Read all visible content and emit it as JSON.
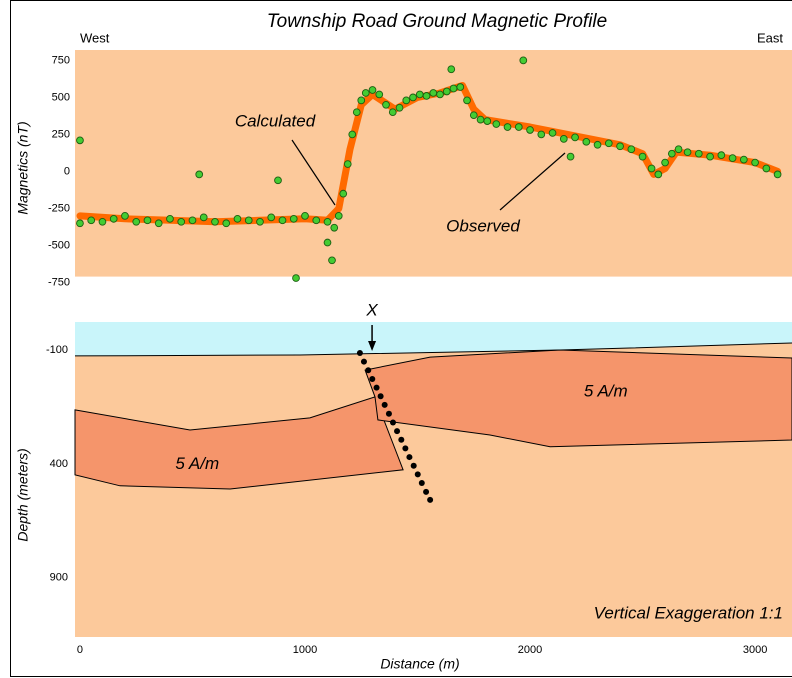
{
  "chart_data": [
    {
      "type": "scatter",
      "title": "Township Road Ground Magnetic Profile",
      "left_label": "West",
      "right_label": "East",
      "ylabel": "Magnetics (nT)",
      "ylim": [
        -710,
        820
      ],
      "yticks": [
        750,
        500,
        250,
        0,
        -250,
        -500,
        -750
      ],
      "background": "#fcc99b",
      "series": [
        {
          "name": "Calculated",
          "color": "#ff6a00",
          "x": [
            0,
            200,
            400,
            600,
            800,
            1000,
            1100,
            1150,
            1200,
            1250,
            1300,
            1400,
            1500,
            1600,
            1700,
            1750,
            1800,
            2000,
            2200,
            2400,
            2500,
            2550,
            2600,
            2650,
            2800,
            3000,
            3100
          ],
          "values": [
            -300,
            -320,
            -330,
            -340,
            -330,
            -320,
            -330,
            -250,
            150,
            450,
            520,
            420,
            500,
            530,
            580,
            420,
            350,
            300,
            240,
            180,
            120,
            -20,
            20,
            130,
            110,
            60,
            0
          ]
        },
        {
          "name": "Observed",
          "color": "#44cc33",
          "x": [
            0,
            50,
            100,
            150,
            200,
            250,
            300,
            350,
            400,
            450,
            500,
            550,
            600,
            650,
            700,
            750,
            800,
            850,
            900,
            950,
            1000,
            1050,
            1100,
            1130,
            1150,
            1170,
            1190,
            1210,
            1230,
            1250,
            1270,
            1300,
            1330,
            1360,
            1390,
            1420,
            1450,
            1480,
            1510,
            1540,
            1570,
            1600,
            1630,
            1660,
            1690,
            1720,
            1750,
            1780,
            1810,
            1850,
            1900,
            1950,
            2000,
            2050,
            2100,
            2150,
            2200,
            2250,
            2300,
            2350,
            2400,
            2450,
            2500,
            2540,
            2570,
            2600,
            2630,
            2660,
            2700,
            2750,
            2800,
            2850,
            2900,
            2950,
            3000,
            3050,
            3100,
            0,
            530,
            880,
            960,
            1100,
            1120,
            1650,
            1970,
            2180
          ],
          "values": [
            -350,
            -330,
            -340,
            -320,
            -300,
            -340,
            -330,
            -350,
            -320,
            -340,
            -330,
            -310,
            -340,
            -350,
            -320,
            -330,
            -340,
            -310,
            -330,
            -320,
            -300,
            -330,
            -340,
            -380,
            -300,
            -150,
            50,
            250,
            400,
            480,
            530,
            550,
            520,
            450,
            400,
            430,
            480,
            500,
            520,
            510,
            530,
            520,
            540,
            560,
            570,
            480,
            380,
            350,
            340,
            320,
            300,
            300,
            280,
            250,
            260,
            220,
            230,
            200,
            180,
            190,
            170,
            150,
            100,
            20,
            -20,
            60,
            120,
            150,
            130,
            120,
            100,
            110,
            90,
            80,
            60,
            20,
            -20,
            210,
            -20,
            -60,
            -720,
            -480,
            -600,
            690,
            750,
            100
          ]
        }
      ]
    },
    {
      "type": "cross-section",
      "ylabel": "Depth (meters)",
      "xlabel": "Distance (m)",
      "xlim": [
        -22,
        3164
      ],
      "xticks": [
        0,
        1000,
        2000,
        3000
      ],
      "ylim": [
        -223,
        1160
      ],
      "yticks": [
        -100,
        400,
        900
      ],
      "air_color": "#c9f5fa",
      "ground_color": "#fcc99b",
      "body_color": "#f5956b",
      "surface": {
        "x": [
          -22,
          978,
          2133,
          2444,
          3164
        ],
        "y": [
          -74,
          -78,
          -100,
          -109,
          -131
        ]
      },
      "bodies": [
        {
          "label": "5 A/m",
          "x": [
            -22,
            489,
            1022,
            1311,
            1436,
            667,
            178,
            -22
          ],
          "y": [
            163,
            251,
            198,
            106,
            426,
            510,
            496,
            448
          ]
        },
        {
          "label": "5 A/m",
          "x": [
            1267,
            1556,
            2133,
            3164,
            3164,
            2089,
            1822,
            1324,
            1311
          ],
          "y": [
            -12,
            -69,
            -100,
            -65,
            295,
            325,
            273,
            207,
            106
          ]
        }
      ],
      "fault": {
        "x": [
          1244,
          1262,
          1281,
          1299,
          1318,
          1336,
          1354,
          1373,
          1391,
          1409,
          1428,
          1446,
          1464,
          1483,
          1501,
          1519,
          1538,
          1556
        ],
        "y": [
          -87,
          -49,
          -11,
          27,
          65,
          103,
          141,
          180,
          218,
          256,
          294,
          332,
          370,
          408,
          446,
          484,
          523,
          558
        ]
      },
      "marker": {
        "label": "X",
        "x": 1298
      },
      "annotation": "Vertical Exaggeration 1:1"
    }
  ]
}
